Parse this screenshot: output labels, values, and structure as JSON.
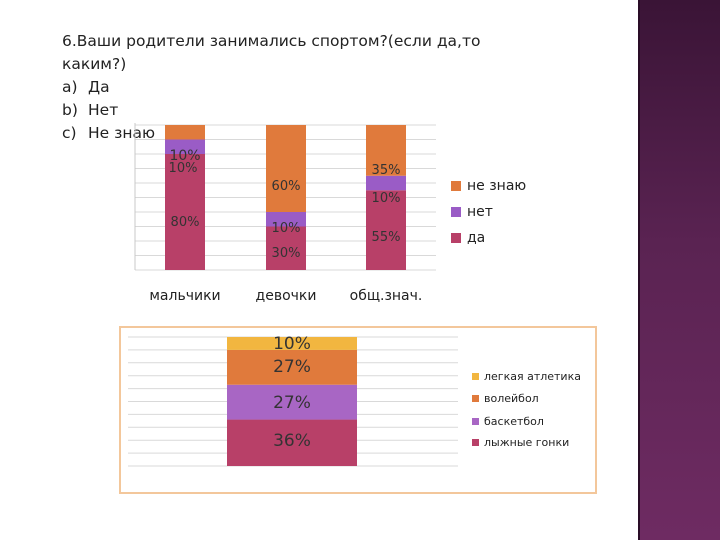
{
  "question": {
    "title": "6.Ваши родители занимались спортом?(если да,то каким?)",
    "title_line1": "6.Ваши родители занимались спортом?(если да,то",
    "title_line2": "каким?)",
    "options": [
      {
        "letter": "a)",
        "text": "Да"
      },
      {
        "letter": "b)",
        "text": "Нет"
      },
      {
        "letter": "c)",
        "text": "Не знаю"
      }
    ]
  },
  "colors": {
    "da": "#b84068",
    "net": "#9a5cc6",
    "ne_znayu": "#e07a3c",
    "legkaya": "#f2b640",
    "voleybol": "#e07a3c",
    "basketbol": "#a866c4",
    "lyzhnye": "#b84068",
    "sidebar": "#5a2352"
  },
  "chart_data": [
    {
      "type": "bar",
      "stacked": true,
      "categories": [
        "мальчики",
        "девочки",
        "общ.знач."
      ],
      "series": [
        {
          "name": "да",
          "values": [
            80,
            30,
            55
          ],
          "labels": [
            "80%",
            "30%",
            "55%"
          ],
          "color": "#b84068"
        },
        {
          "name": "нет",
          "values": [
            10,
            10,
            10
          ],
          "labels": [
            "10%",
            "10%",
            "10%"
          ],
          "color": "#9a5cc6"
        },
        {
          "name": "не знаю",
          "values": [
            10,
            60,
            35
          ],
          "labels": [
            "10%",
            "60%",
            "35%"
          ],
          "color": "#e07a3c"
        }
      ],
      "legend_order": [
        "не знаю",
        "нет",
        "да"
      ],
      "legend_position": "right",
      "grid": true,
      "ylim": [
        0,
        100
      ]
    },
    {
      "type": "bar",
      "stacked": true,
      "categories": [
        ""
      ],
      "series": [
        {
          "name": "лыжные гонки",
          "values": [
            36
          ],
          "labels": [
            "36%"
          ],
          "color": "#b84068"
        },
        {
          "name": "баскетбол",
          "values": [
            27
          ],
          "labels": [
            "27%"
          ],
          "color": "#a866c4"
        },
        {
          "name": "волейбол",
          "values": [
            27
          ],
          "labels": [
            "27%"
          ],
          "color": "#e07a3c"
        },
        {
          "name": "легкая атлетика",
          "values": [
            10
          ],
          "labels": [
            "10%"
          ],
          "color": "#f2b640"
        }
      ],
      "legend_order": [
        "легкая атлетика",
        "волейбол",
        "баскетбол",
        "лыжные гонки"
      ],
      "legend_position": "right",
      "grid": true,
      "ylim": [
        0,
        100
      ]
    }
  ]
}
